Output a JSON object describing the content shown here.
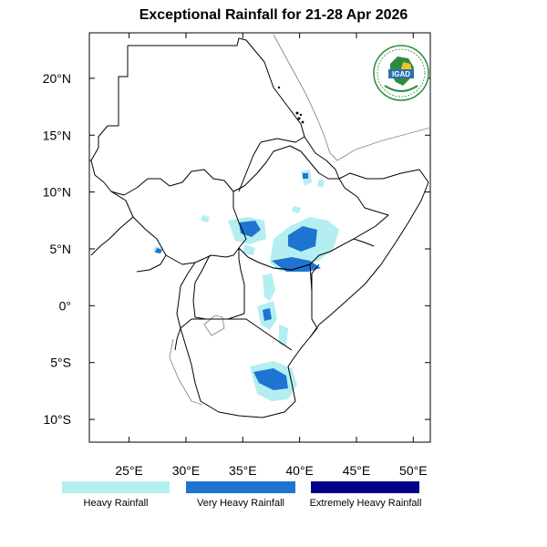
{
  "title": "Exceptional Rainfall for 21-28 Apr 2026",
  "logo": {
    "text": "IGAD",
    "icon": "igad-logo"
  },
  "axes": {
    "lon_ticks": [
      "25°E",
      "30°E",
      "35°E",
      "40°E",
      "45°E",
      "50°E"
    ],
    "lat_ticks": [
      "20°N",
      "15°N",
      "10°N",
      "5°N",
      "0°",
      "5°S",
      "10°S"
    ],
    "lon_values": [
      25,
      30,
      35,
      40,
      45,
      50
    ],
    "lat_values": [
      20,
      15,
      10,
      5,
      0,
      -5,
      -10
    ],
    "lon_range": [
      21.5,
      51.5
    ],
    "lat_range": [
      -12,
      24
    ]
  },
  "legend": {
    "items": [
      {
        "label": "Heavy Rainfall",
        "color": "#b3eef0"
      },
      {
        "label": "Very Heavy Rainfall",
        "color": "#1e74d0"
      },
      {
        "label": "Extremely Heavy Rainfall",
        "color": "#00008b"
      }
    ]
  }
}
